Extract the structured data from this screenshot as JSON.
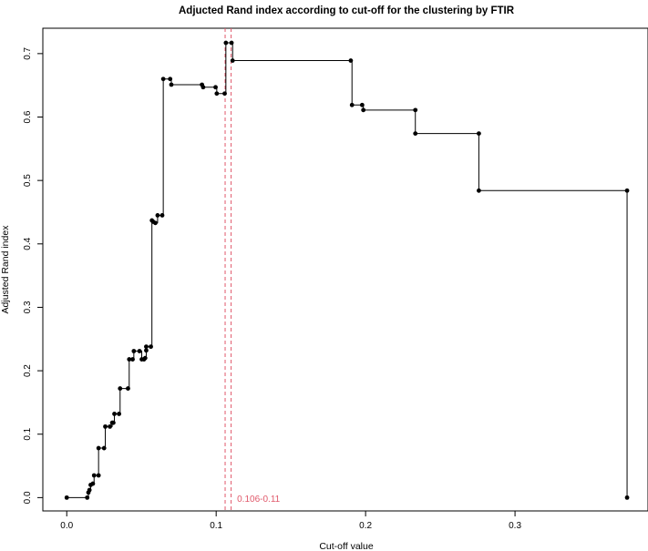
{
  "chart_data": {
    "type": "line",
    "title": "Adjucted Rand index according to cut-off for the clustering by FTIR",
    "xlabel": "Cut-off value",
    "ylabel": "Adjusted Rand index",
    "xlim": [
      -0.016,
      0.389
    ],
    "ylim": [
      -0.021,
      0.74
    ],
    "xticks": [
      0.0,
      0.1,
      0.2,
      0.3
    ],
    "xtick_labels": [
      "0.0",
      "0.1",
      "0.2",
      "0.3"
    ],
    "yticks": [
      0.0,
      0.1,
      0.2,
      0.3,
      0.4,
      0.5,
      0.6,
      0.7
    ],
    "ytick_labels": [
      "0.0",
      "0.1",
      "0.2",
      "0.3",
      "0.4",
      "0.5",
      "0.6",
      "0.7"
    ],
    "grid": false,
    "step": "post",
    "series": [
      {
        "color": "#000000",
        "points": [
          [
            0.0,
            0.0
          ],
          [
            0.0137,
            0.0
          ],
          [
            0.0145,
            0.008
          ],
          [
            0.0152,
            0.012
          ],
          [
            0.016,
            0.02
          ],
          [
            0.0175,
            0.022
          ],
          [
            0.0183,
            0.035
          ],
          [
            0.0213,
            0.035
          ],
          [
            0.0213,
            0.078
          ],
          [
            0.025,
            0.078
          ],
          [
            0.0258,
            0.112
          ],
          [
            0.0289,
            0.112
          ],
          [
            0.0304,
            0.118
          ],
          [
            0.0312,
            0.118
          ],
          [
            0.0319,
            0.132
          ],
          [
            0.035,
            0.132
          ],
          [
            0.0357,
            0.172
          ],
          [
            0.041,
            0.172
          ],
          [
            0.0418,
            0.218
          ],
          [
            0.0441,
            0.218
          ],
          [
            0.0449,
            0.231
          ],
          [
            0.0487,
            0.231
          ],
          [
            0.0502,
            0.218
          ],
          [
            0.0517,
            0.218
          ],
          [
            0.0525,
            0.22
          ],
          [
            0.0532,
            0.232
          ],
          [
            0.0532,
            0.238
          ],
          [
            0.0563,
            0.238
          ],
          [
            0.057,
            0.437
          ],
          [
            0.0578,
            0.435
          ],
          [
            0.0593,
            0.433
          ],
          [
            0.0608,
            0.445
          ],
          [
            0.0639,
            0.445
          ],
          [
            0.0646,
            0.66
          ],
          [
            0.0692,
            0.66
          ],
          [
            0.07,
            0.651
          ],
          [
            0.0905,
            0.651
          ],
          [
            0.0913,
            0.647
          ],
          [
            0.0996,
            0.647
          ],
          [
            0.1004,
            0.637
          ],
          [
            0.1057,
            0.637
          ],
          [
            0.1065,
            0.717
          ],
          [
            0.1103,
            0.717
          ],
          [
            0.111,
            0.689
          ],
          [
            0.1901,
            0.689
          ],
          [
            0.1909,
            0.619
          ],
          [
            0.1977,
            0.619
          ],
          [
            0.1985,
            0.611
          ],
          [
            0.2333,
            0.611
          ],
          [
            0.2333,
            0.574
          ],
          [
            0.2758,
            0.574
          ],
          [
            0.2758,
            0.484
          ],
          [
            0.375,
            0.484
          ],
          [
            0.375,
            0.0
          ]
        ]
      }
    ],
    "vlines": [
      {
        "x": 0.106,
        "color": "#e0586a",
        "style": "dashed"
      },
      {
        "x": 0.11,
        "color": "#e0586a",
        "style": "dashed"
      }
    ],
    "annotations": [
      {
        "text": "0.106-0.11",
        "x": 0.114,
        "y": -0.001,
        "color": "#e0586a"
      }
    ]
  }
}
